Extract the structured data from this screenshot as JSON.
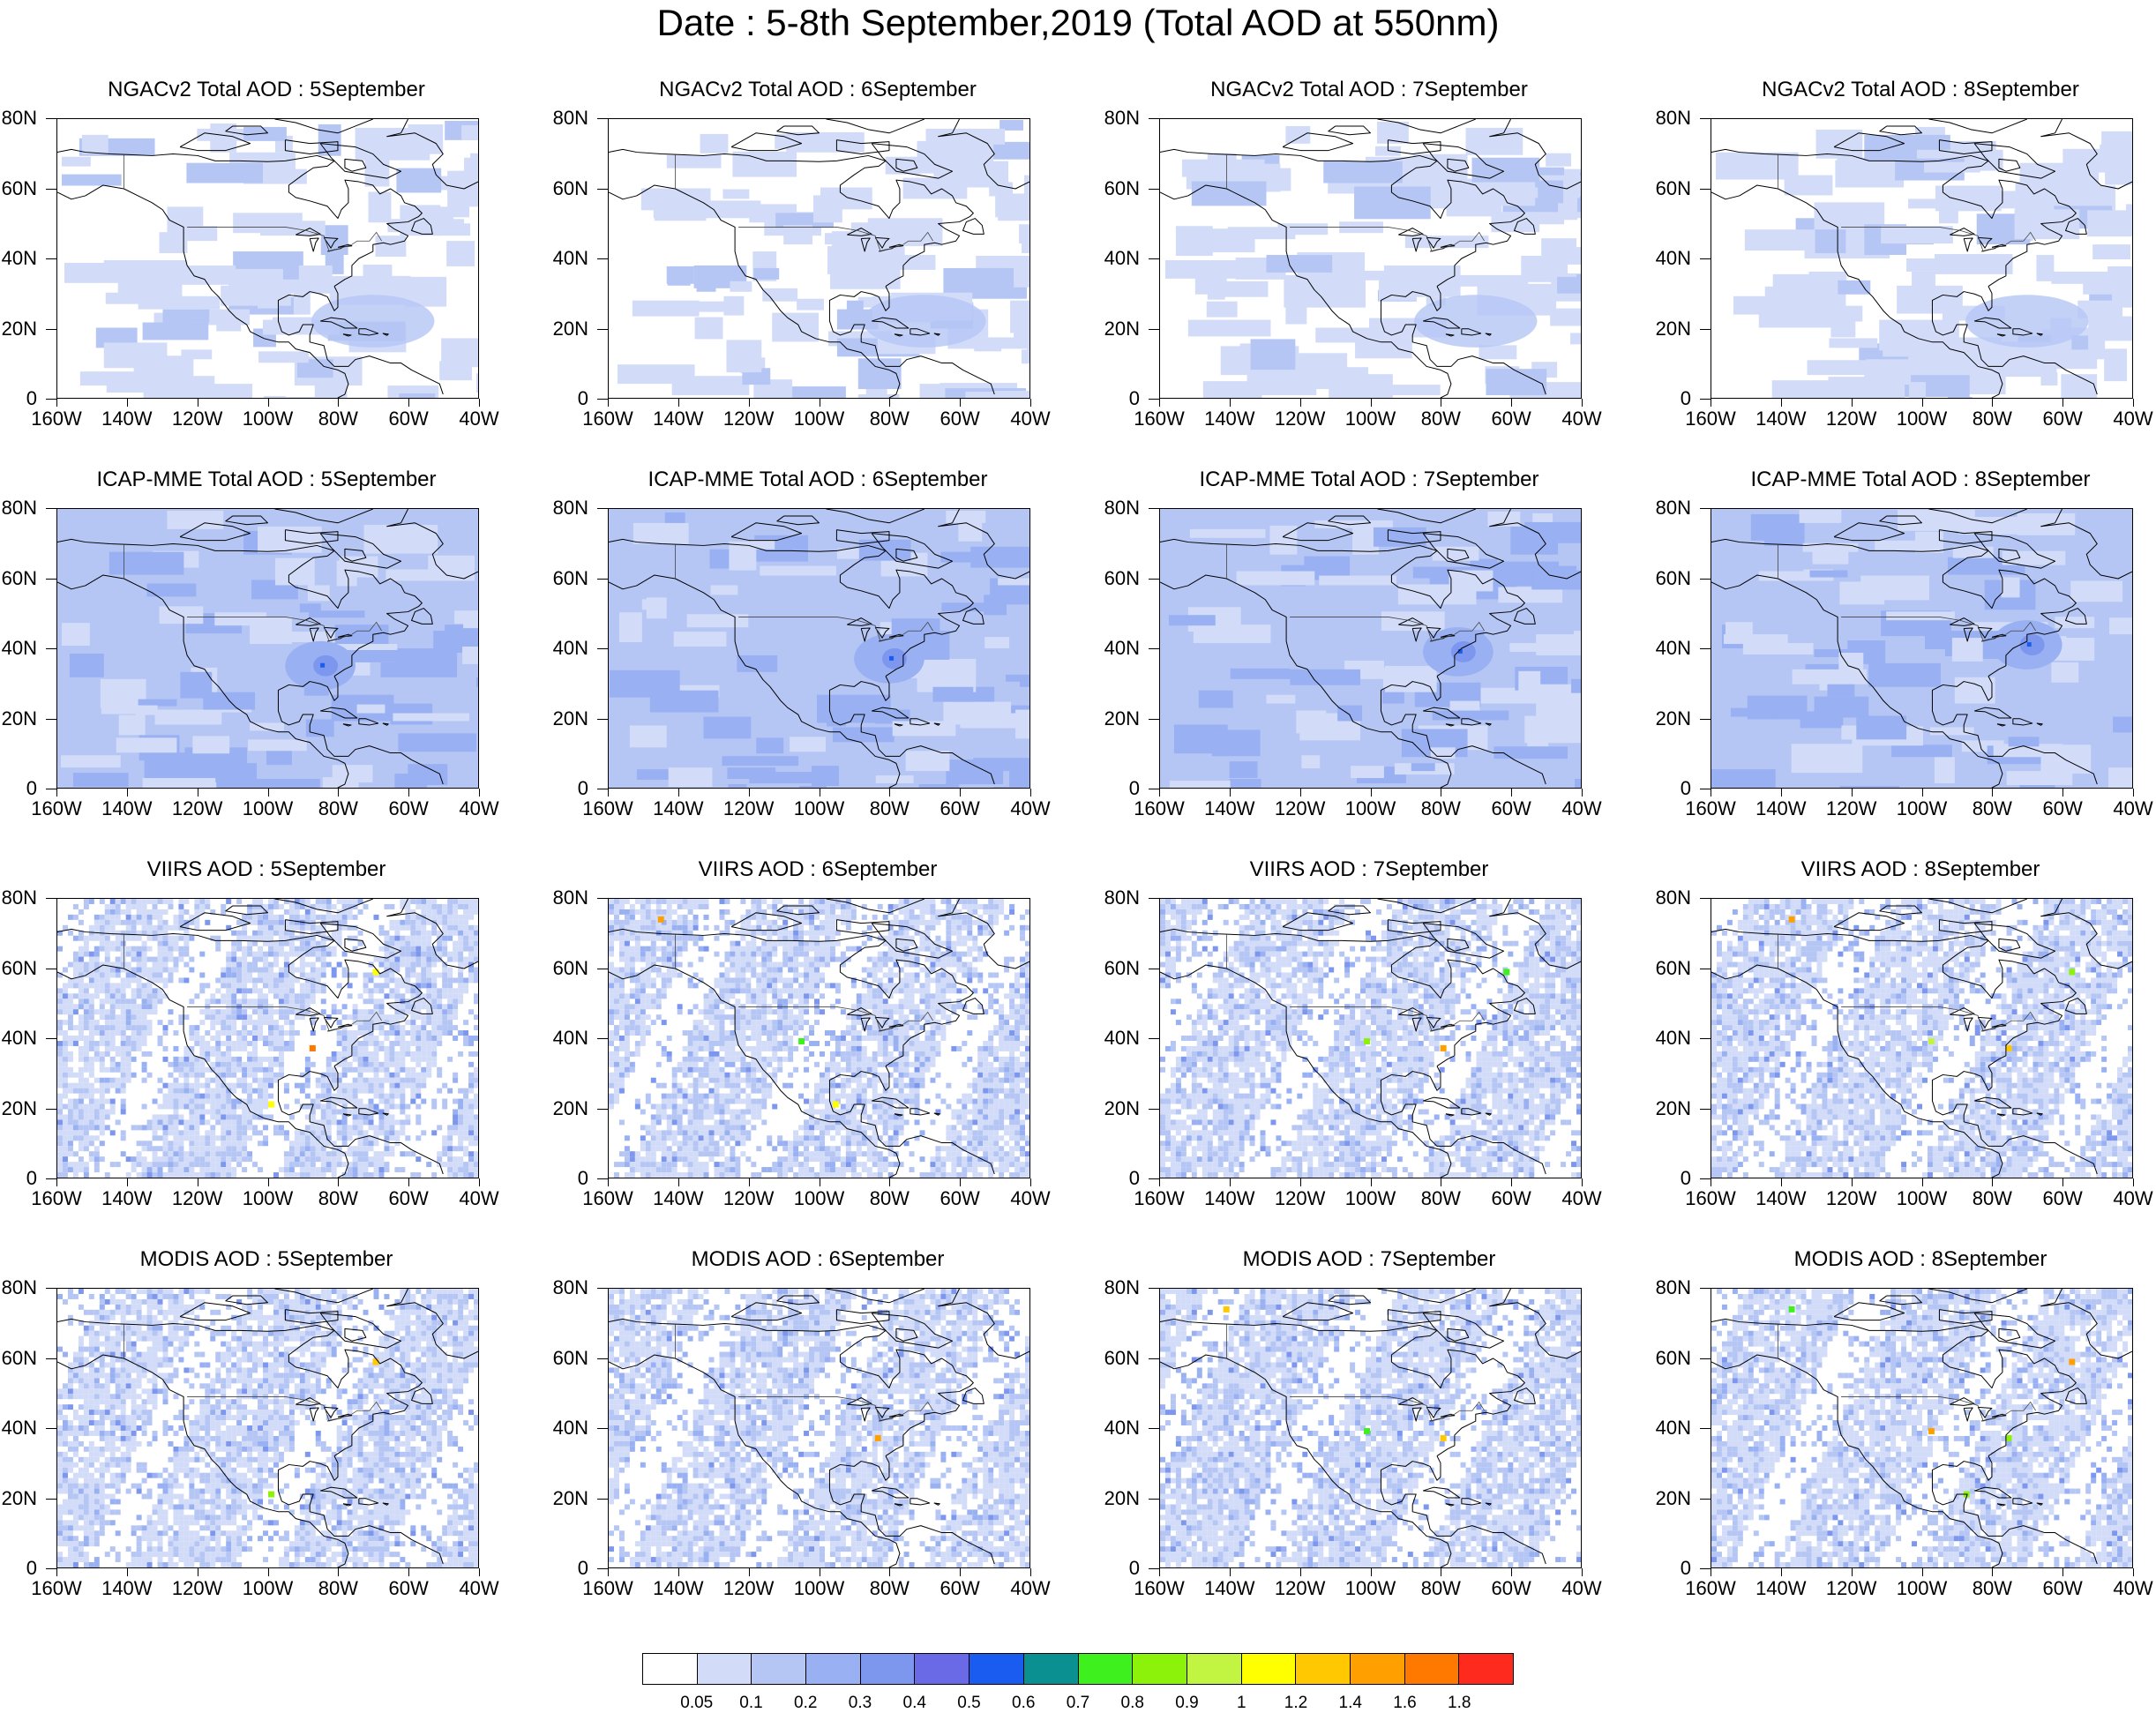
{
  "title": "Date : 5-8th September,2019 (Total AOD at 550nm)",
  "lat_labels": [
    "80N",
    "60N",
    "40N",
    "20N",
    "0"
  ],
  "lon_labels": [
    "160W",
    "140W",
    "120W",
    "100W",
    "80W",
    "60W",
    "40W"
  ],
  "panels": [
    [
      "NGACv2 Total AOD : 5September",
      "NGACv2 Total AOD : 6September",
      "NGACv2 Total AOD : 7September",
      "NGACv2 Total AOD : 8September"
    ],
    [
      "ICAP-MME Total AOD : 5September",
      "ICAP-MME Total AOD : 6September",
      "ICAP-MME Total AOD : 7September",
      "ICAP-MME Total AOD : 8September"
    ],
    [
      "VIIRS AOD : 5September",
      "VIIRS AOD : 6September",
      "VIIRS AOD : 7September",
      "VIIRS AOD : 8September"
    ],
    [
      "MODIS AOD : 5September",
      "MODIS AOD : 6September",
      "MODIS AOD : 7September",
      "MODIS AOD : 8September"
    ]
  ],
  "colorbar": {
    "labels": [
      "0.05",
      "0.1",
      "0.2",
      "0.3",
      "0.4",
      "0.5",
      "0.6",
      "0.7",
      "0.8",
      "0.9",
      "1",
      "1.2",
      "1.4",
      "1.6",
      "1.8"
    ],
    "colors": [
      "#ffffff",
      "#d2dcf8",
      "#b5c6f5",
      "#99b0f2",
      "#7d96ee",
      "#6a6ae6",
      "#1a5cf0",
      "#0a9090",
      "#3ef01e",
      "#8cf20a",
      "#c2f541",
      "#ffff00",
      "#ffc800",
      "#ffa000",
      "#ff7800",
      "#ff2a1e"
    ]
  }
}
